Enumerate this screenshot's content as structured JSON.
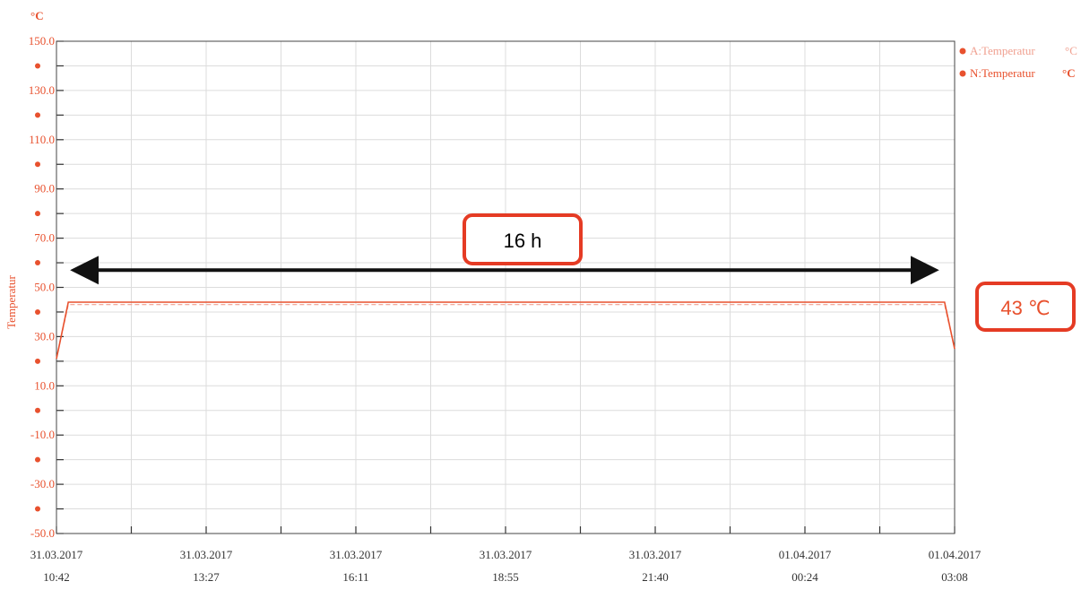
{
  "chart_data": {
    "type": "line",
    "unit_label": "°C",
    "ylabel": "Temperatur",
    "ylim": [
      -50,
      150
    ],
    "y_ticks": [
      "150.0",
      "130.0",
      "110.0",
      "90.0",
      "70.0",
      "50.0",
      "30.0",
      "10.0",
      "-10.0",
      "-30.0",
      "-50.0"
    ],
    "x_ticks": [
      {
        "date": "31.03.2017",
        "time": "10:42"
      },
      {
        "date": "31.03.2017",
        "time": "13:27"
      },
      {
        "date": "31.03.2017",
        "time": "16:11"
      },
      {
        "date": "31.03.2017",
        "time": "18:55"
      },
      {
        "date": "31.03.2017",
        "time": "21:40"
      },
      {
        "date": "01.04.2017",
        "time": "00:24"
      },
      {
        "date": "01.04.2017",
        "time": "03:08"
      }
    ],
    "xlim": [
      "31.03.2017 10:42",
      "01.04.2017 03:08"
    ],
    "grid": true,
    "legend_position": "top-right",
    "series": [
      {
        "name": "A:Temperatur",
        "unit": "°C",
        "color": "#f0a090",
        "style": "dashed",
        "points": [
          {
            "x": "31.03.2017 10:42",
            "y": 21
          },
          {
            "x": "31.03.2017 10:55",
            "y": 43
          },
          {
            "x": "01.04.2017 02:57",
            "y": 43
          },
          {
            "x": "01.04.2017 03:08",
            "y": 25
          }
        ]
      },
      {
        "name": "N:Temperatur",
        "unit": "°C",
        "color": "#e8512e",
        "style": "solid",
        "points": [
          {
            "x": "31.03.2017 10:42",
            "y": 21
          },
          {
            "x": "31.03.2017 10:55",
            "y": 44
          },
          {
            "x": "01.04.2017 02:57",
            "y": 44
          },
          {
            "x": "01.04.2017 03:08",
            "y": 25
          }
        ]
      }
    ],
    "annotations": {
      "duration_label": "16 h",
      "temperature_label": "43 ℃",
      "duration_arrow": {
        "from": "31.03.2017 10:53",
        "to": "01.04.2017 02:55",
        "y": 57
      }
    },
    "colors": {
      "accent": "#e8512e",
      "callout_border": "#e53b24",
      "arrow": "#111111",
      "grid": "#dcdcdc"
    }
  }
}
